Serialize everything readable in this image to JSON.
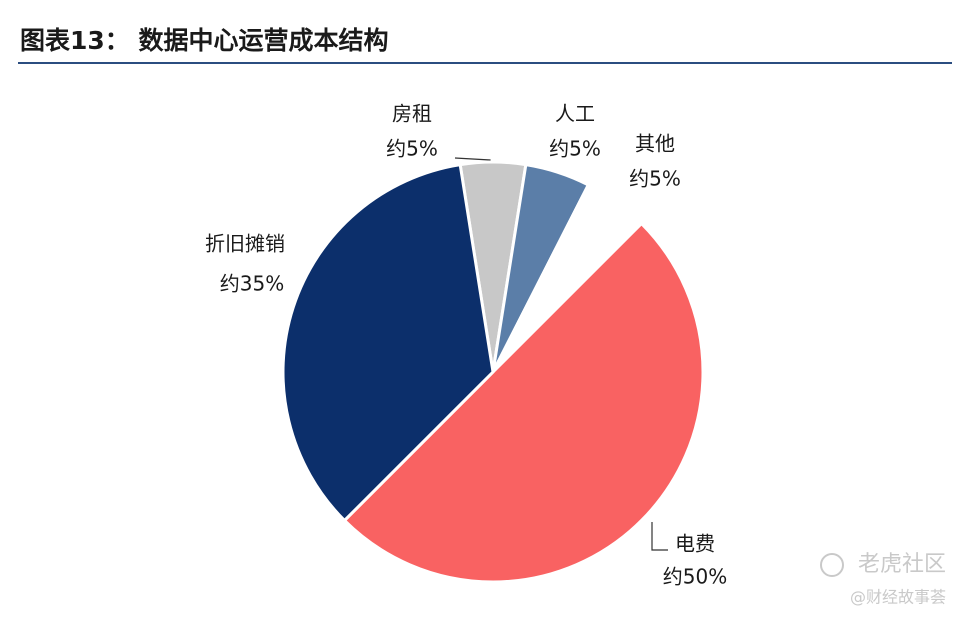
{
  "chart_data": {
    "type": "pie",
    "title": "图表13： 数据中心运营成本结构",
    "categories": [
      "房租",
      "人工",
      "其他",
      "电费",
      "折旧摊销"
    ],
    "values": [
      5,
      5,
      5,
      50,
      35
    ],
    "value_labels": [
      "约5%",
      "约5%",
      "约5%",
      "约50%",
      "约35%"
    ],
    "colors": [
      "#c8c8c8",
      "#5b7ea8",
      "#ffffff",
      "#f96262",
      "#0c2f6b"
    ],
    "watermark": "老虎社区",
    "watermark_source": "@财经故事荟"
  }
}
